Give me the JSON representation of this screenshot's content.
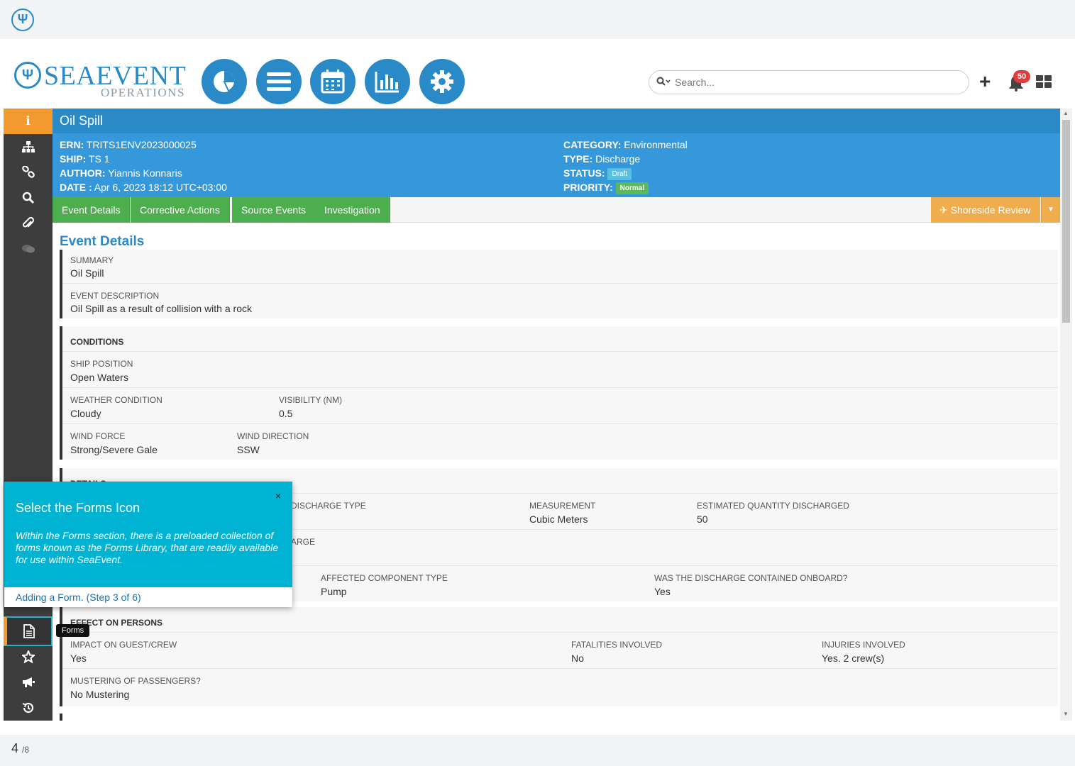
{
  "brand": {
    "name": "SEAEVENT",
    "sub": "OPERATIONS",
    "mark": "Ψ"
  },
  "search": {
    "placeholder": "Search..."
  },
  "notifications": {
    "count": "50"
  },
  "event": {
    "title": "Oil Spill",
    "ern_label": "ERN:",
    "ern": "TRITS1ENV2023000025",
    "ship_label": "SHIP:",
    "ship": "TS 1",
    "author_label": "AUTHOR:",
    "author": "Yiannis Konnaris",
    "date_label": "DATE :",
    "date": "Apr 6, 2023 18:12 UTC+03:00",
    "category_label": "CATEGORY:",
    "category": "Environmental",
    "type_label": "TYPE:",
    "type": "Discharge",
    "status_label": "STATUS:",
    "status": "Draft",
    "priority_label": "PRIORITY:",
    "priority": "Normal"
  },
  "tabs": [
    "Event Details",
    "Corrective Actions",
    "Source Events",
    "Investigation"
  ],
  "shoreside": "Shoreside Review",
  "section_title": "Event Details",
  "summary": {
    "label": "SUMMARY",
    "value": "Oil Spill"
  },
  "description": {
    "label": "EVENT DESCRIPTION",
    "value": "Oil Spill as a result of collision with a rock"
  },
  "conditions": {
    "heading": "CONDITIONS",
    "ship_position_label": "SHIP POSITION",
    "ship_position": "Open Waters",
    "weather_label": "WEATHER CONDITION",
    "weather": "Cloudy",
    "visibility_label": "VISIBILITY (NM)",
    "visibility": "0.5",
    "wind_force_label": "WIND FORCE",
    "wind_force": "Strong/Severe Gale",
    "wind_direction_label": "WIND DIRECTION",
    "wind_direction": "SSW"
  },
  "details": {
    "heading": "DETAILS",
    "discharge_type_label": "DISCHARGE TYPE",
    "measurement_label": "MEASUREMENT",
    "measurement": "Cubic Meters",
    "quantity_label": "ESTIMATED QUANTITY DISCHARGED",
    "quantity": "50",
    "discharge_label": "ARGE",
    "component_label": "AFFECTED COMPONENT TYPE",
    "component": "Pump",
    "contained_label": "WAS THE DISCHARGE CONTAINED ONBOARD?",
    "contained": "Yes"
  },
  "persons": {
    "heading": "EFFECT ON PERSONS",
    "impact_label": "IMPACT ON GUEST/CREW",
    "impact": "Yes",
    "fatalities_label": "FATALITIES INVOLVED",
    "fatalities": "No",
    "injuries_label": "INJURIES INVOLVED",
    "injuries": "Yes. 2 crew(s)",
    "mustering_label": "MUSTERING OF PASSENGERS?",
    "mustering": "No Mustering"
  },
  "tooltip": "Forms",
  "popover": {
    "title": "Select the Forms Icon",
    "body": "Within the Forms section, there is a preloaded collection of forms known as the Forms Library, that are readily available for use within SeaEvent.",
    "step": "Adding a Form. (Step 3 of 6)",
    "close": "×"
  },
  "pager": {
    "current": "4",
    "total": "/8"
  },
  "colors": {
    "primary": "#2a8ac8",
    "info": "#3498db",
    "tab": "#4cae4c",
    "orange": "#f29a2e",
    "popover": "#00b3d3"
  }
}
